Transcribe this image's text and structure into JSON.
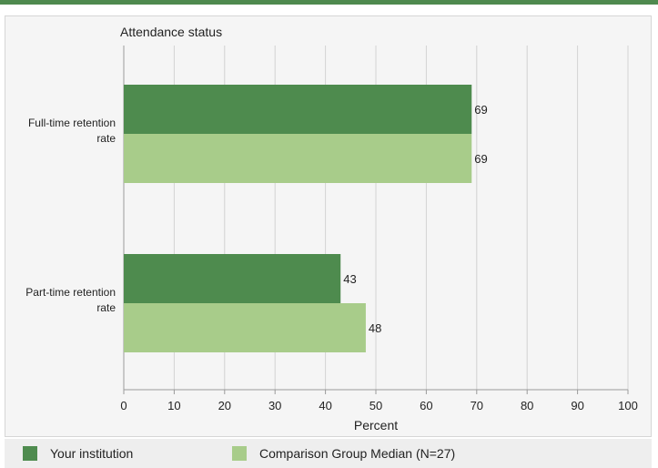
{
  "colors": {
    "your_institution": "#4e8b4e",
    "comparison_group": "#a8cc8a",
    "top_bar": "#4f8a4f"
  },
  "legend": {
    "your_institution": "Your institution",
    "comparison_group": "Comparison Group Median (N=27)"
  },
  "chart_data": {
    "type": "bar",
    "orientation": "horizontal",
    "title": "Attendance status",
    "xlabel": "Percent",
    "ylabel": "",
    "xlim": [
      0,
      100
    ],
    "xticks": [
      0,
      10,
      20,
      30,
      40,
      50,
      60,
      70,
      80,
      90,
      100
    ],
    "grid": true,
    "legend_position": "bottom",
    "categories": [
      [
        "Full-time retention",
        "rate"
      ],
      [
        "Part-time retention",
        "rate"
      ]
    ],
    "series": [
      {
        "name": "Your institution",
        "values": [
          69,
          43
        ]
      },
      {
        "name": "Comparison Group Median (N=27)",
        "values": [
          69,
          48
        ]
      }
    ]
  }
}
